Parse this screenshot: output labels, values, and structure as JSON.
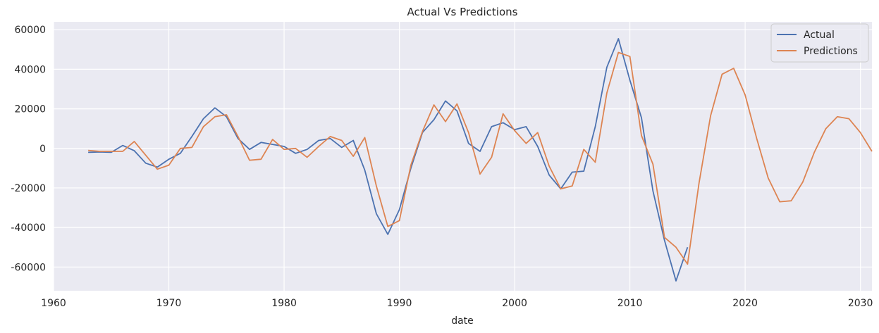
{
  "chart_data": {
    "type": "line",
    "title": "Actual Vs Predictions",
    "xlabel": "date",
    "ylabel": "",
    "xlim": [
      1960,
      2031
    ],
    "ylim": [
      -72000,
      64000
    ],
    "x_ticks": [
      1960,
      1970,
      1980,
      1990,
      2000,
      2010,
      2020,
      2030
    ],
    "y_ticks": [
      -60000,
      -40000,
      -20000,
      0,
      20000,
      40000,
      60000
    ],
    "grid": true,
    "legend_position": "top-right",
    "series": [
      {
        "name": "Actual",
        "color": "#4c72b0",
        "x": [
          1963,
          1964,
          1965,
          1966,
          1967,
          1968,
          1969,
          1970,
          1971,
          1972,
          1973,
          1974,
          1975,
          1976,
          1977,
          1978,
          1979,
          1980,
          1981,
          1982,
          1983,
          1984,
          1985,
          1986,
          1987,
          1988,
          1989,
          1990,
          1991,
          1992,
          1993,
          1994,
          1995,
          1996,
          1997,
          1998,
          1999,
          2000,
          2001,
          2002,
          2003,
          2004,
          2005,
          2006,
          2007,
          2008,
          2009,
          2010,
          2011,
          2012,
          2013,
          2014,
          2015
        ],
        "y": [
          -2000,
          -1800,
          -2000,
          1500,
          -1200,
          -7500,
          -9500,
          -5500,
          -2500,
          6000,
          15000,
          20500,
          16000,
          5000,
          -500,
          3000,
          2000,
          1000,
          -2500,
          -500,
          4000,
          5000,
          500,
          4000,
          -11000,
          -33000,
          -43500,
          -31000,
          -10000,
          8000,
          14500,
          24000,
          19000,
          2500,
          -1500,
          11000,
          13000,
          9500,
          11000,
          1000,
          -13500,
          -20500,
          -12000,
          -11500,
          11000,
          41000,
          55500,
          34500,
          15500,
          -21500,
          -46500,
          -67000,
          -50000
        ]
      },
      {
        "name": "Predictions",
        "color": "#dd8452",
        "x": [
          1963,
          1964,
          1965,
          1966,
          1967,
          1968,
          1969,
          1970,
          1971,
          1972,
          1973,
          1974,
          1975,
          1976,
          1977,
          1978,
          1979,
          1980,
          1981,
          1982,
          1983,
          1984,
          1985,
          1986,
          1987,
          1988,
          1989,
          1990,
          1991,
          1992,
          1993,
          1994,
          1995,
          1996,
          1997,
          1998,
          1999,
          2000,
          2001,
          2002,
          2003,
          2004,
          2005,
          2006,
          2007,
          2008,
          2009,
          2010,
          2011,
          2012,
          2013,
          2014,
          2015,
          2016,
          2017,
          2018,
          2019,
          2020,
          2021,
          2022,
          2023,
          2024,
          2025,
          2026,
          2027,
          2028,
          2029,
          2030,
          2031
        ],
        "y": [
          -1000,
          -1500,
          -1500,
          -1500,
          3500,
          -3500,
          -10500,
          -8500,
          0,
          500,
          11000,
          16000,
          17000,
          6000,
          -6000,
          -5500,
          4500,
          -500,
          0,
          -4500,
          1000,
          6000,
          4000,
          -4000,
          5500,
          -19000,
          -39500,
          -36500,
          -8500,
          8500,
          22000,
          13500,
          22500,
          8000,
          -13000,
          -4500,
          17500,
          9000,
          2500,
          8000,
          -9000,
          -20500,
          -19000,
          -500,
          -7000,
          28000,
          48500,
          46500,
          6500,
          -8000,
          -45000,
          -50000,
          -58500,
          -17500,
          16500,
          37500,
          40500,
          27000,
          5000,
          -15000,
          -27000,
          -26500,
          -17000,
          -2000,
          10000,
          16000,
          15000,
          8000,
          -1500
        ]
      }
    ]
  }
}
